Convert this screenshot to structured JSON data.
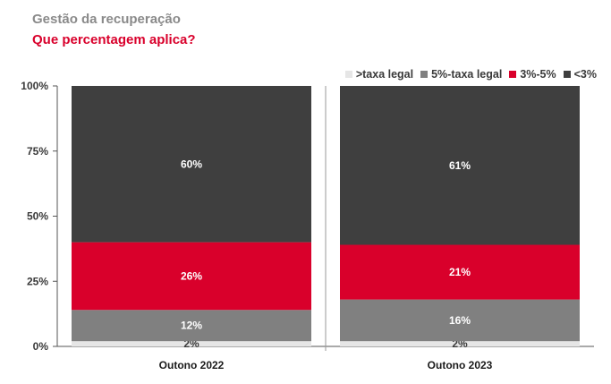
{
  "header": {
    "title": "Gestão da recuperação",
    "subtitle": "Que percentagem aplica?"
  },
  "colors": {
    "above_legal": "#e6e6e6",
    "legal_5": "#808080",
    "r3_5": "#d9002b",
    "lt3": "#3f3f3f"
  },
  "chart_data": {
    "type": "bar",
    "stacked": true,
    "categories": [
      "Outono 2022",
      "Outono 2023"
    ],
    "series": [
      {
        "name": ">taxa legal",
        "values": [
          2,
          2
        ],
        "color": "#e6e6e6"
      },
      {
        "name": "5%-taxa legal",
        "values": [
          12,
          16
        ],
        "color": "#808080"
      },
      {
        "name": "3%-5%",
        "values": [
          26,
          21
        ],
        "color": "#d9002b"
      },
      {
        "name": "<3%",
        "values": [
          60,
          61
        ],
        "color": "#3f3f3f"
      }
    ],
    "data_labels": [
      [
        "2%",
        "12%",
        "26%",
        "60%"
      ],
      [
        "2%",
        "16%",
        "21%",
        "61%"
      ]
    ],
    "ylim": [
      0,
      100
    ],
    "yticks": [
      "0%",
      "25%",
      "50%",
      "75%",
      "100%"
    ],
    "grid": false,
    "legend_position": "top-right"
  }
}
